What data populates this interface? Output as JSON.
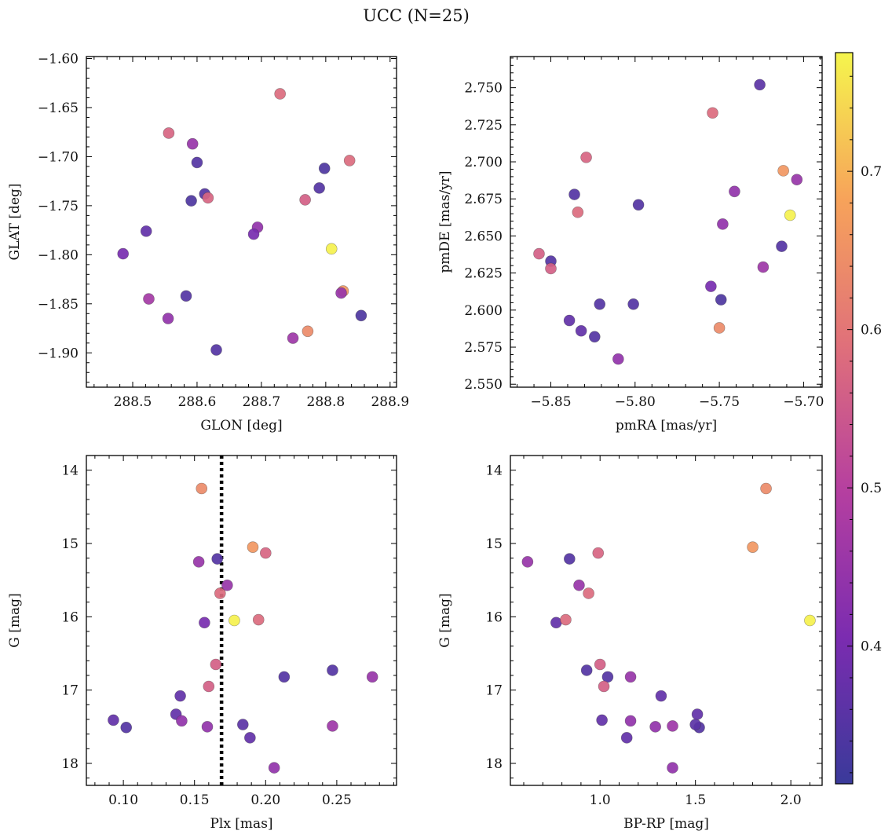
{
  "figure": {
    "title": "UCC (N=25)"
  },
  "colorbar": {
    "cmap": "plasma",
    "range": [
      0.313,
      0.775
    ],
    "ticks": [
      0.4,
      0.5,
      0.6,
      0.7
    ],
    "tick_labels": [
      "0.4",
      "0.5",
      "0.6",
      "0.7"
    ]
  },
  "chart_data": [
    {
      "type": "scatter",
      "id": "glon-glat",
      "xlabel": "GLON [deg]",
      "ylabel": "GLAT [deg]",
      "xlim": [
        288.428,
        288.91
      ],
      "ylim": [
        -1.935,
        -1.598
      ],
      "y_inverted": false,
      "xticks": [
        288.5,
        288.6,
        288.7,
        288.8,
        288.9
      ],
      "xtick_labels": [
        "288.5",
        "288.6",
        "288.7",
        "288.8",
        "288.9"
      ],
      "yticks": [
        -1.9,
        -1.85,
        -1.8,
        -1.75,
        -1.7,
        -1.65,
        -1.6
      ],
      "ytick_labels": [
        "−1.90",
        "−1.85",
        "−1.80",
        "−1.75",
        "−1.70",
        "−1.65",
        "−1.60"
      ],
      "x": [
        288.729,
        288.556,
        288.593,
        288.6,
        288.837,
        288.798,
        288.79,
        288.612,
        288.617,
        288.591,
        288.768,
        288.694,
        288.521,
        288.688,
        288.485,
        288.809,
        288.827,
        288.824,
        288.525,
        288.583,
        288.555,
        288.855,
        288.772,
        288.749,
        288.63
      ],
      "y": [
        -1.636,
        -1.676,
        -1.687,
        -1.706,
        -1.704,
        -1.712,
        -1.732,
        -1.738,
        -1.742,
        -1.745,
        -1.744,
        -1.772,
        -1.776,
        -1.779,
        -1.799,
        -1.794,
        -1.837,
        -1.839,
        -1.845,
        -1.842,
        -1.865,
        -1.862,
        -1.878,
        -1.885,
        -1.897
      ],
      "color_values": [
        0.58,
        0.57,
        0.45,
        0.35,
        0.58,
        0.34,
        0.35,
        0.35,
        0.57,
        0.34,
        0.56,
        0.44,
        0.37,
        0.4,
        0.4,
        0.77,
        0.66,
        0.45,
        0.47,
        0.35,
        0.44,
        0.34,
        0.64,
        0.46,
        0.35
      ]
    },
    {
      "type": "scatter",
      "id": "pmra-pmde",
      "xlabel": "pmRA [mas/yr]",
      "ylabel": "pmDE [mas/yr]",
      "xlim": [
        -5.874,
        -5.689
      ],
      "ylim": [
        2.548,
        2.771
      ],
      "y_inverted": false,
      "xticks": [
        -5.85,
        -5.8,
        -5.75,
        -5.7
      ],
      "xtick_labels": [
        "−5.85",
        "−5.80",
        "−5.75",
        "−5.70"
      ],
      "yticks": [
        2.55,
        2.575,
        2.6,
        2.625,
        2.65,
        2.675,
        2.7,
        2.725,
        2.75
      ],
      "ytick_labels": [
        "2.550",
        "2.575",
        "2.600",
        "2.625",
        "2.650",
        "2.675",
        "2.700",
        "2.725",
        "2.750"
      ],
      "x": [
        -5.726,
        -5.754,
        -5.829,
        -5.712,
        -5.704,
        -5.741,
        -5.836,
        -5.798,
        -5.834,
        -5.708,
        -5.748,
        -5.857,
        -5.713,
        -5.85,
        -5.85,
        -5.724,
        -5.755,
        -5.749,
        -5.821,
        -5.801,
        -5.839,
        -5.75,
        -5.832,
        -5.824,
        -5.81
      ],
      "y": [
        2.752,
        2.733,
        2.703,
        2.694,
        2.688,
        2.68,
        2.678,
        2.671,
        2.666,
        2.664,
        2.658,
        2.638,
        2.643,
        2.633,
        2.628,
        2.629,
        2.616,
        2.607,
        2.604,
        2.604,
        2.593,
        2.588,
        2.586,
        2.582,
        2.567
      ],
      "color_values": [
        0.36,
        0.58,
        0.57,
        0.66,
        0.45,
        0.44,
        0.35,
        0.35,
        0.58,
        0.77,
        0.44,
        0.56,
        0.35,
        0.35,
        0.56,
        0.46,
        0.4,
        0.34,
        0.35,
        0.35,
        0.37,
        0.64,
        0.37,
        0.35,
        0.44
      ]
    },
    {
      "type": "scatter",
      "id": "plx-g",
      "xlabel": "Plx [mas]",
      "ylabel": "G [mag]",
      "xlim": [
        0.074,
        0.292
      ],
      "ylim": [
        18.3,
        13.8
      ],
      "y_inverted": true,
      "xticks": [
        0.1,
        0.15,
        0.2,
        0.25
      ],
      "xtick_labels": [
        "0.10",
        "0.15",
        "0.20",
        "0.25"
      ],
      "yticks": [
        14,
        15,
        16,
        17,
        18
      ],
      "ytick_labels": [
        "14",
        "15",
        "16",
        "17",
        "18"
      ],
      "vline_x": 0.169,
      "x": [
        0.155,
        0.191,
        0.2,
        0.153,
        0.166,
        0.168,
        0.173,
        0.157,
        0.178,
        0.195,
        0.165,
        0.247,
        0.213,
        0.275,
        0.16,
        0.14,
        0.137,
        0.093,
        0.141,
        0.102,
        0.159,
        0.184,
        0.247,
        0.189,
        0.206
      ],
      "y": [
        14.25,
        15.05,
        15.13,
        15.25,
        15.21,
        15.68,
        15.57,
        16.08,
        16.05,
        16.04,
        16.65,
        16.73,
        16.82,
        16.82,
        16.95,
        17.08,
        17.33,
        17.41,
        17.42,
        17.51,
        17.5,
        17.47,
        17.49,
        17.65,
        18.06
      ],
      "color_values": [
        0.64,
        0.66,
        0.57,
        0.45,
        0.35,
        0.58,
        0.45,
        0.4,
        0.77,
        0.58,
        0.56,
        0.35,
        0.35,
        0.45,
        0.56,
        0.37,
        0.37,
        0.37,
        0.44,
        0.35,
        0.44,
        0.36,
        0.46,
        0.37,
        0.44
      ]
    },
    {
      "type": "scatter",
      "id": "bprp-g",
      "xlabel": "BP-RP [mag]",
      "ylabel": "G [mag]",
      "xlim": [
        0.53,
        2.164
      ],
      "ylim": [
        18.3,
        13.8
      ],
      "y_inverted": true,
      "xticks": [
        1.0,
        1.5,
        2.0
      ],
      "xtick_labels": [
        "1.0",
        "1.5",
        "2.0"
      ],
      "yticks": [
        14,
        15,
        16,
        17,
        18
      ],
      "ytick_labels": [
        "14",
        "15",
        "16",
        "17",
        "18"
      ],
      "x": [
        1.87,
        1.8,
        0.99,
        0.62,
        0.84,
        0.94,
        0.89,
        0.77,
        2.1,
        0.82,
        1.0,
        0.93,
        1.04,
        1.16,
        1.02,
        1.32,
        1.51,
        1.01,
        1.16,
        1.52,
        1.5,
        1.29,
        1.38,
        1.14,
        1.38
      ],
      "y": [
        14.25,
        15.05,
        15.13,
        15.25,
        15.21,
        15.68,
        15.57,
        16.08,
        16.05,
        16.04,
        16.65,
        16.73,
        16.82,
        16.82,
        16.95,
        17.08,
        17.33,
        17.41,
        17.42,
        17.51,
        17.47,
        17.5,
        17.49,
        17.65,
        18.06
      ],
      "color_values": [
        0.64,
        0.66,
        0.57,
        0.45,
        0.35,
        0.58,
        0.45,
        0.37,
        0.77,
        0.58,
        0.56,
        0.35,
        0.35,
        0.45,
        0.56,
        0.37,
        0.37,
        0.37,
        0.44,
        0.35,
        0.36,
        0.44,
        0.46,
        0.37,
        0.44
      ]
    }
  ]
}
